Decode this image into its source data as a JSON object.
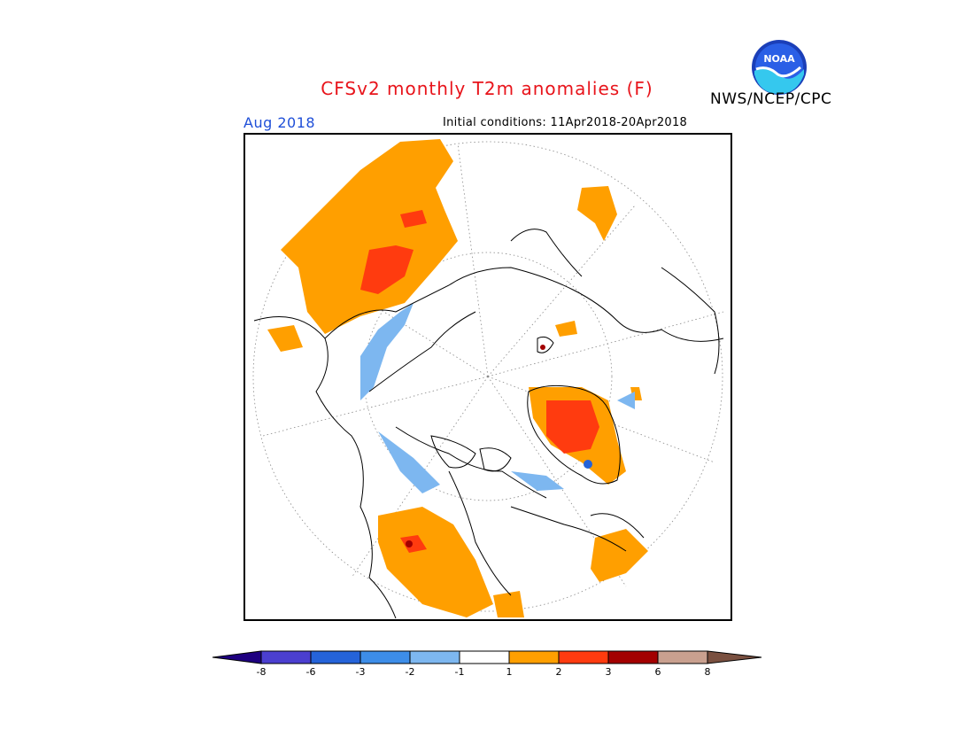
{
  "header": {
    "title": "CFSv2 monthly T2m anomalies (F)",
    "agency": "NWS/NCEP/CPC",
    "valid_month": "Aug 2018",
    "initial_conditions": "Initial conditions: 11Apr2018-20Apr2018"
  },
  "logo": {
    "text": "NOAA",
    "icon": "noaa-logo-icon"
  },
  "map": {
    "projection": "north-polar-stereographic",
    "region": "Northern Hemisphere high latitudes"
  },
  "legend": {
    "labels": [
      "-8",
      "-6",
      "-3",
      "-2",
      "-1",
      "1",
      "2",
      "3",
      "6",
      "8"
    ],
    "colors": [
      "#1e0080",
      "#4b3fcf",
      "#2563d9",
      "#3d8de8",
      "#7db7f0",
      "#ffffff",
      "#ff9f00",
      "#ff3b0f",
      "#a30000",
      "#c9a08f",
      "#7a5040"
    ]
  }
}
